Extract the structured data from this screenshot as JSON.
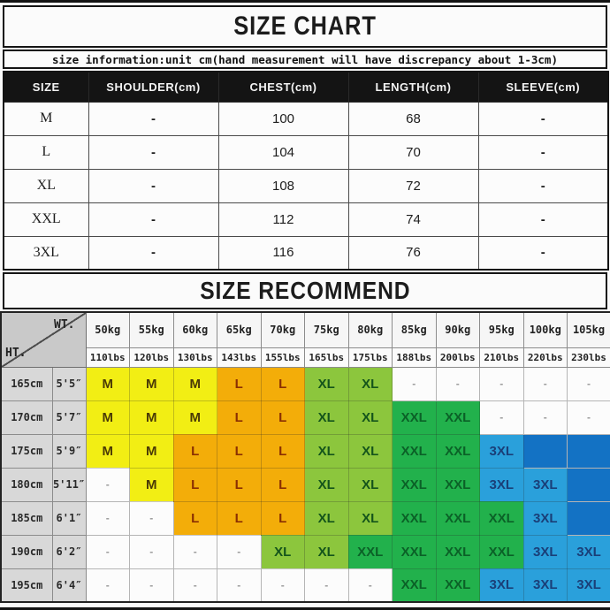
{
  "page": {
    "title": "SIZE CHART",
    "subtitle": "size information:unit cm(hand measurement will have discrepancy about 1-3cm)"
  },
  "size_table": {
    "headers": [
      "SIZE",
      "SHOULDER(cm)",
      "CHEST(cm)",
      "LENGTH(cm)",
      "SLEEVE(cm)"
    ],
    "rows": [
      [
        "M",
        "-",
        "100",
        "68",
        "-"
      ],
      [
        "L",
        "-",
        "104",
        "70",
        "-"
      ],
      [
        "XL",
        "-",
        "108",
        "72",
        "-"
      ],
      [
        "XXL",
        "-",
        "112",
        "74",
        "-"
      ],
      [
        "3XL",
        "-",
        "116",
        "76",
        "-"
      ]
    ]
  },
  "recommend": {
    "title": "SIZE RECOMMEND",
    "corner_top": "WT.",
    "corner_bottom": "HT.",
    "weight_kg": [
      "50kg",
      "55kg",
      "60kg",
      "65kg",
      "70kg",
      "75kg",
      "80kg",
      "85kg",
      "90kg",
      "95kg",
      "100kg",
      "105kg"
    ],
    "weight_lbs": [
      "110lbs",
      "120lbs",
      "130lbs",
      "143lbs",
      "155lbs",
      "165lbs",
      "175lbs",
      "188lbs",
      "200lbs",
      "210lbs",
      "220lbs",
      "230lbs"
    ],
    "rows": [
      {
        "height_cm": "165cm",
        "height_ft": "5'5″",
        "cells": [
          [
            "M",
            "yellow"
          ],
          [
            "M",
            "yellow"
          ],
          [
            "M",
            "yellow"
          ],
          [
            "L",
            "orange"
          ],
          [
            "L",
            "orange"
          ],
          [
            "XL",
            "green"
          ],
          [
            "XL",
            "green"
          ],
          [
            "-",
            "white"
          ],
          [
            "-",
            "white"
          ],
          [
            "-",
            "white"
          ],
          [
            "-",
            "white"
          ],
          [
            "-",
            "white"
          ]
        ]
      },
      {
        "height_cm": "170cm",
        "height_ft": "5'7″",
        "cells": [
          [
            "M",
            "yellow"
          ],
          [
            "M",
            "yellow"
          ],
          [
            "M",
            "yellow"
          ],
          [
            "L",
            "orange"
          ],
          [
            "L",
            "orange"
          ],
          [
            "XL",
            "green"
          ],
          [
            "XL",
            "green"
          ],
          [
            "XXL",
            "darkgreen"
          ],
          [
            "XXL",
            "darkgreen"
          ],
          [
            "-",
            "white"
          ],
          [
            "-",
            "white"
          ],
          [
            "-",
            "white"
          ]
        ]
      },
      {
        "height_cm": "175cm",
        "height_ft": "5'9″",
        "cells": [
          [
            "M",
            "yellow"
          ],
          [
            "M",
            "yellow"
          ],
          [
            "L",
            "orange"
          ],
          [
            "L",
            "orange"
          ],
          [
            "L",
            "orange"
          ],
          [
            "XL",
            "green"
          ],
          [
            "XL",
            "green"
          ],
          [
            "XXL",
            "darkgreen"
          ],
          [
            "XXL",
            "darkgreen"
          ],
          [
            "3XL",
            "blue"
          ],
          [
            "",
            "darkblue"
          ],
          [
            "",
            "darkblue"
          ]
        ]
      },
      {
        "height_cm": "180cm",
        "height_ft": "5'11″",
        "cells": [
          [
            "-",
            "white"
          ],
          [
            "M",
            "yellow"
          ],
          [
            "L",
            "orange"
          ],
          [
            "L",
            "orange"
          ],
          [
            "L",
            "orange"
          ],
          [
            "XL",
            "green"
          ],
          [
            "XL",
            "green"
          ],
          [
            "XXL",
            "darkgreen"
          ],
          [
            "XXL",
            "darkgreen"
          ],
          [
            "3XL",
            "blue"
          ],
          [
            "3XL",
            "blue"
          ],
          [
            "",
            "darkblue"
          ]
        ]
      },
      {
        "height_cm": "185cm",
        "height_ft": "6'1″",
        "cells": [
          [
            "-",
            "white"
          ],
          [
            "-",
            "white"
          ],
          [
            "L",
            "orange"
          ],
          [
            "L",
            "orange"
          ],
          [
            "L",
            "orange"
          ],
          [
            "XL",
            "green"
          ],
          [
            "XL",
            "green"
          ],
          [
            "XXL",
            "darkgreen"
          ],
          [
            "XXL",
            "darkgreen"
          ],
          [
            "XXL",
            "darkgreen"
          ],
          [
            "3XL",
            "blue"
          ],
          [
            "",
            "darkblue"
          ]
        ]
      },
      {
        "height_cm": "190cm",
        "height_ft": "6'2″",
        "cells": [
          [
            "-",
            "white"
          ],
          [
            "-",
            "white"
          ],
          [
            "-",
            "white"
          ],
          [
            "-",
            "white"
          ],
          [
            "XL",
            "green"
          ],
          [
            "XL",
            "green"
          ],
          [
            "XXL",
            "darkgreen"
          ],
          [
            "XXL",
            "darkgreen"
          ],
          [
            "XXL",
            "darkgreen"
          ],
          [
            "XXL",
            "darkgreen"
          ],
          [
            "3XL",
            "blue"
          ],
          [
            "3XL",
            "blue"
          ]
        ]
      },
      {
        "height_cm": "195cm",
        "height_ft": "6'4″",
        "cells": [
          [
            "-",
            "white"
          ],
          [
            "-",
            "white"
          ],
          [
            "-",
            "white"
          ],
          [
            "-",
            "white"
          ],
          [
            "-",
            "white"
          ],
          [
            "-",
            "white"
          ],
          [
            "-",
            "white"
          ],
          [
            "XXL",
            "darkgreen"
          ],
          [
            "XXL",
            "darkgreen"
          ],
          [
            "3XL",
            "blue"
          ],
          [
            "3XL",
            "blue"
          ],
          [
            "3XL",
            "blue"
          ]
        ]
      }
    ]
  },
  "colors": {
    "yellow": {
      "bg": "#f2ee14",
      "text": "#4a3a06"
    },
    "orange": {
      "bg": "#f3ad09",
      "text": "#8a2f02"
    },
    "green": {
      "bg": "#8cc63d",
      "text": "#14541b"
    },
    "darkgreen": {
      "bg": "#22b14c",
      "text": "#0b6127"
    },
    "blue": {
      "bg": "#2aa0db",
      "text": "#1a3f78"
    },
    "darkblue": {
      "bg": "#1372c4",
      "text": "#1372c4"
    },
    "white": {
      "bg": "#fcfcfc",
      "text": "#999999"
    }
  }
}
